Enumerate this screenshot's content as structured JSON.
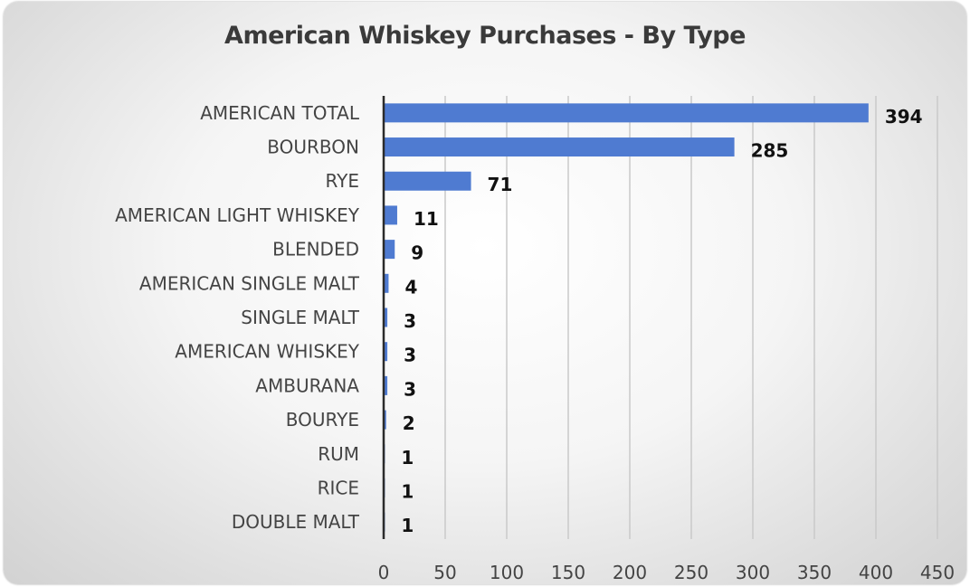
{
  "chart_data": {
    "type": "bar",
    "orientation": "horizontal",
    "title": "American Whiskey Purchases - By Type",
    "xlabel": "",
    "ylabel": "",
    "categories": [
      "AMERICAN TOTAL",
      "BOURBON",
      "RYE",
      "AMERICAN LIGHT WHISKEY",
      "BLENDED",
      "AMERICAN SINGLE MALT",
      "SINGLE MALT",
      "AMERICAN WHISKEY",
      "AMBURANA",
      "BOURYE",
      "RUM",
      "RICE",
      "DOUBLE MALT"
    ],
    "values": [
      394,
      285,
      71,
      11,
      9,
      4,
      3,
      3,
      3,
      2,
      1,
      1,
      1
    ],
    "xlim": [
      0,
      450
    ],
    "xticks": [
      "0",
      "50",
      "100",
      "150",
      "200",
      "250",
      "300",
      "350",
      "400",
      "450"
    ],
    "data_labels": true,
    "grid": "vertical",
    "legend": "none",
    "bar_color": "#4f7bd1"
  }
}
